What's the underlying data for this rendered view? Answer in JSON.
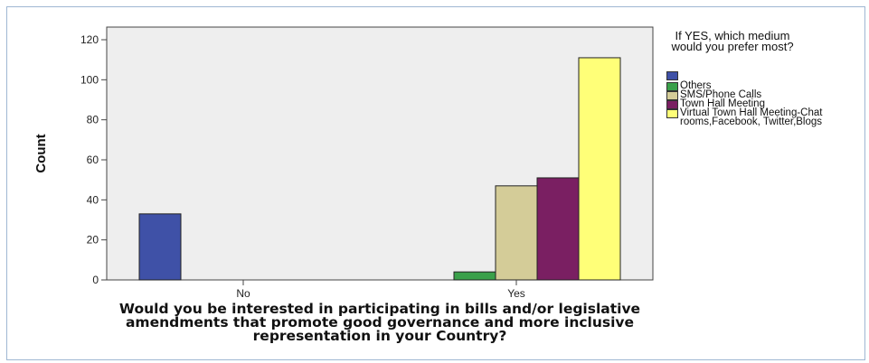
{
  "chart_data": {
    "type": "bar",
    "xlabel": "Would you be interested in participating in bills and/or legislative amendments that promote good governance and more inclusive representation in your Country?",
    "ylabel": "Count",
    "categories": [
      "No",
      "Yes"
    ],
    "yticks": [
      0,
      20,
      40,
      60,
      80,
      100,
      120
    ],
    "ylim": [
      0,
      120
    ],
    "legend_title": "If YES, which medium would you prefer most?",
    "legend_position": "right",
    "grid": false,
    "series": [
      {
        "name": "",
        "color": "#3f51a7",
        "values": [
          33,
          null
        ]
      },
      {
        "name": "Others",
        "color": "#3aa04a",
        "values": [
          null,
          4
        ]
      },
      {
        "name": "SMS/Phone Calls",
        "color": "#d4cc98",
        "values": [
          null,
          47
        ]
      },
      {
        "name": "Town Hall Meeting",
        "color": "#7a1f62",
        "values": [
          null,
          51
        ]
      },
      {
        "name": "Virtual Town Hall Meeting-Chat rooms,Facebook, Twitter,Blogs",
        "color": "#ffff78",
        "values": [
          null,
          111
        ]
      }
    ]
  }
}
